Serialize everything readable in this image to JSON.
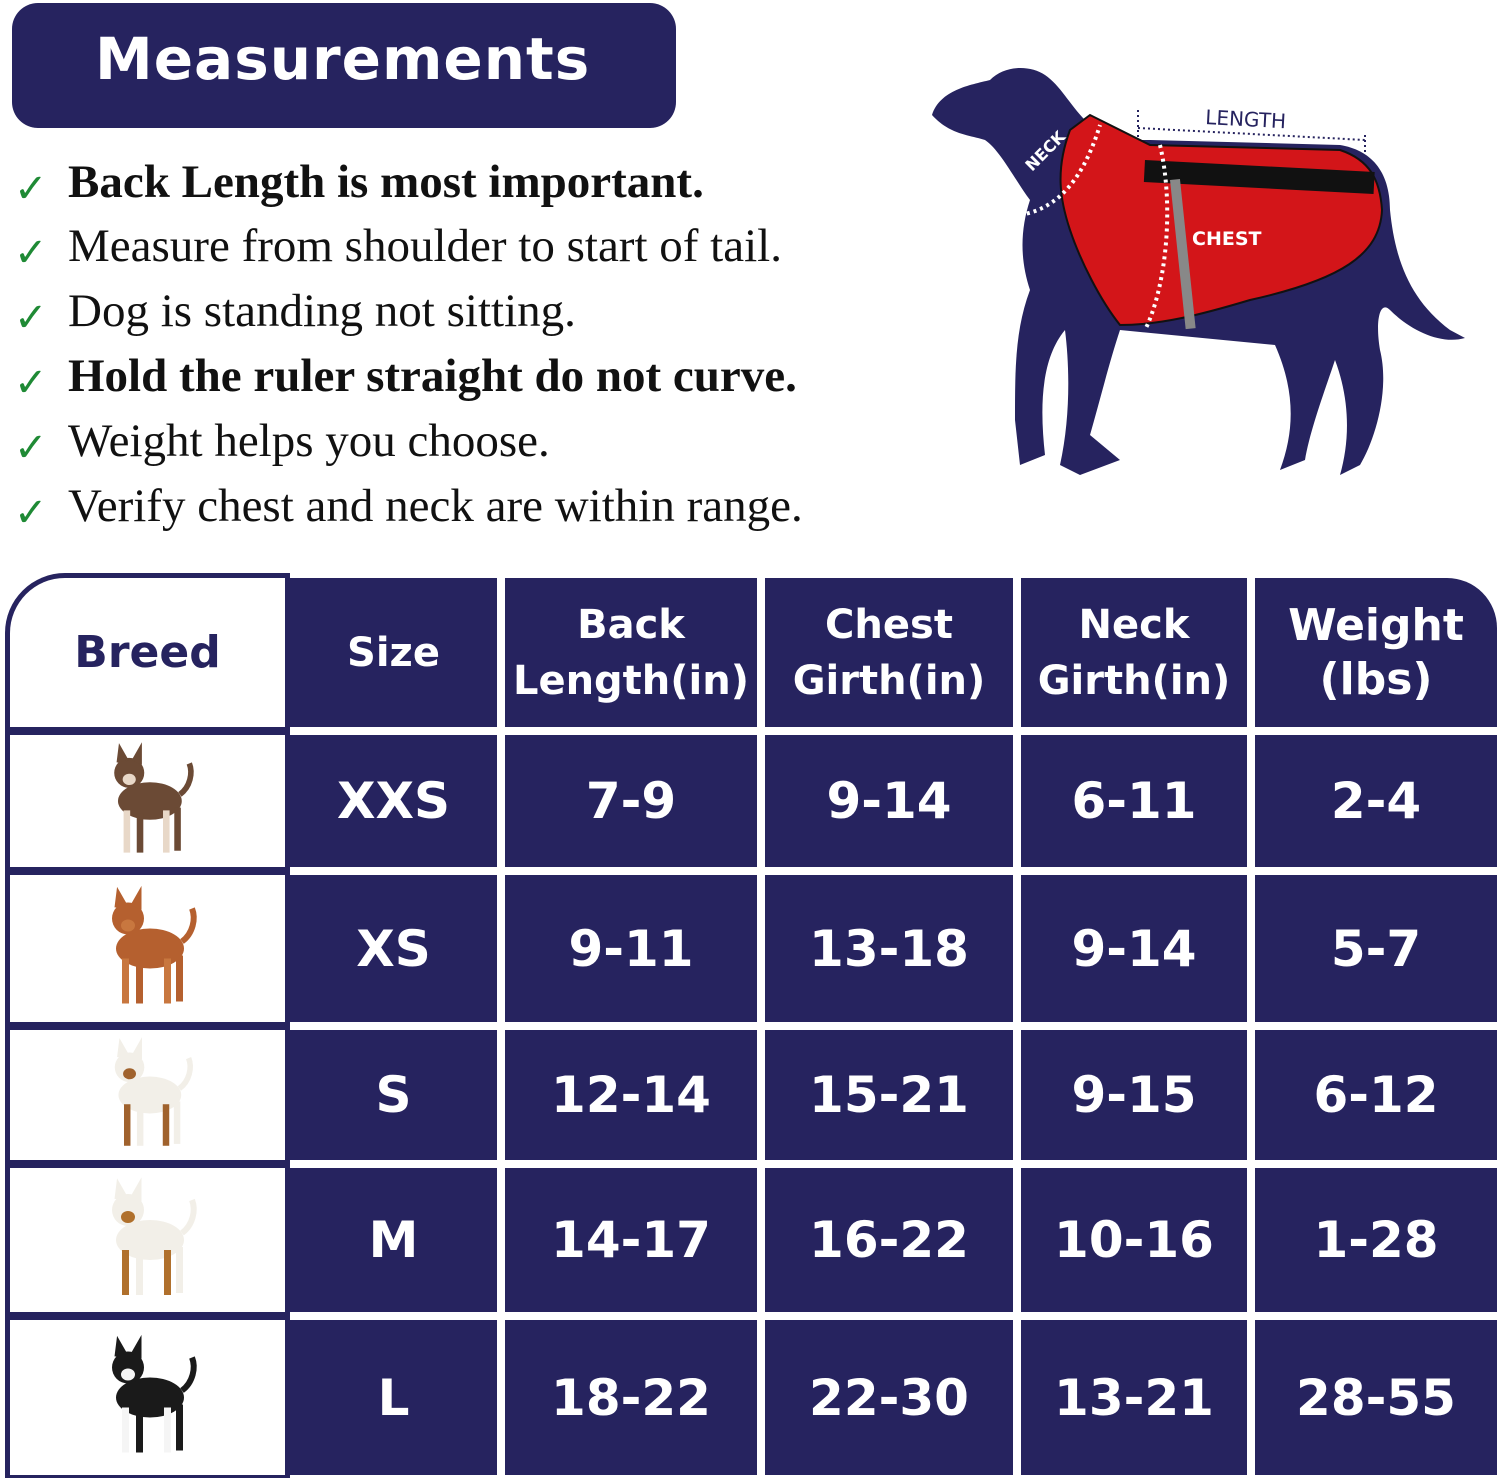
{
  "banner": {
    "title": "Measurements"
  },
  "tips": [
    {
      "text": "Back Length is most important.",
      "bold": true
    },
    {
      "text": "Measure from shoulder to start of  tail.",
      "bold": false
    },
    {
      "text": "Dog is standing not sitting.",
      "bold": false
    },
    {
      "text": "Hold the ruler straight do not curve.",
      "bold": true
    },
    {
      "text": "Weight helps you choose.",
      "bold": false
    },
    {
      "text": "Verify chest and neck are within range.",
      "bold": false
    }
  ],
  "check_icon": "check-mark-icon",
  "diagram": {
    "neck": "NECK",
    "length": "LENGTH",
    "chest": "CHEST"
  },
  "colors": {
    "navy": "#26235f",
    "check": "#1f8a35",
    "vest": "#d31519"
  },
  "table": {
    "headers": {
      "breed": "Breed",
      "size": "Size",
      "back_1": "Back",
      "back_2": "Length(in)",
      "chest_1": "Chest",
      "chest_2": "Girth(in)",
      "neck_1": "Neck",
      "neck_2": "Girth(in)",
      "weight_1": "Weight",
      "weight_2": "(lbs)"
    },
    "rows": [
      {
        "breed_image": "chihuahua",
        "size": "XXS",
        "back": "7-9",
        "chest": "9-14",
        "neck": "6-11",
        "weight": "2-4"
      },
      {
        "breed_image": "toy-poodle",
        "size": "XS",
        "back": "9-11",
        "chest": "13-18",
        "neck": "9-14",
        "weight": "5-7"
      },
      {
        "breed_image": "jack-russell-terrier",
        "size": "S",
        "back": "12-14",
        "chest": "15-21",
        "neck": "9-15",
        "weight": "6-12"
      },
      {
        "breed_image": "beagle",
        "size": "M",
        "back": "14-17",
        "chest": "16-22",
        "neck": "10-16",
        "weight": "1-28"
      },
      {
        "breed_image": "border-collie",
        "size": "L",
        "back": "18-22",
        "chest": "22-30",
        "neck": "13-21",
        "weight": "28-55"
      }
    ]
  }
}
